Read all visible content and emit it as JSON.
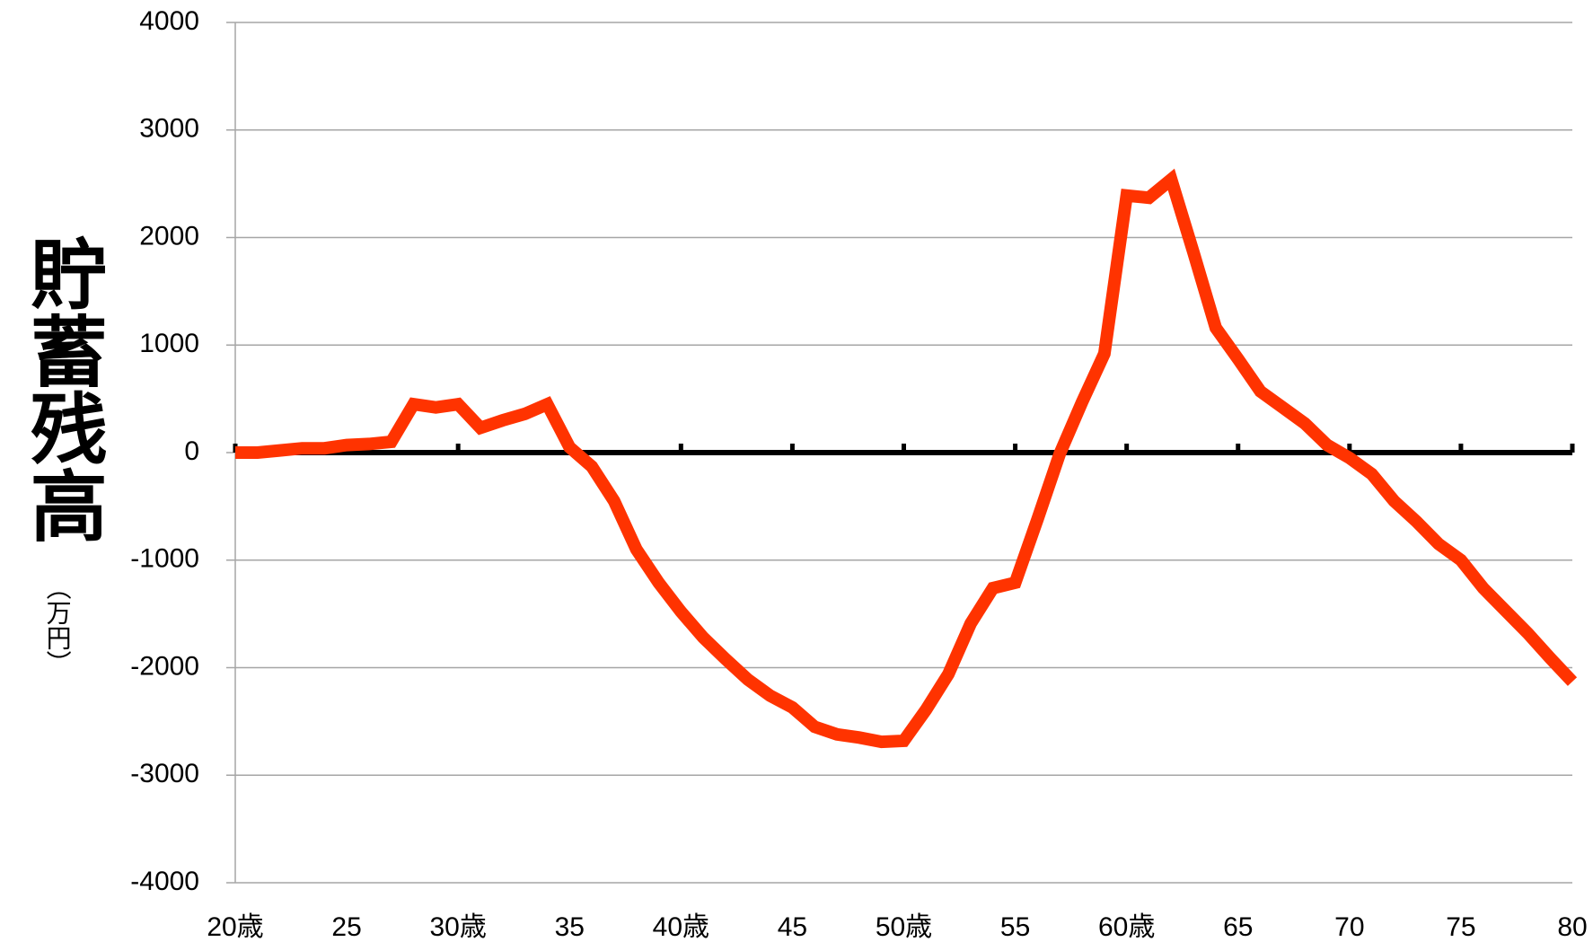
{
  "chart_data": {
    "type": "line",
    "y_label": "貯蓄残高",
    "y_unit": "（万円）",
    "x": [
      20,
      21,
      22,
      23,
      24,
      25,
      26,
      27,
      28,
      29,
      30,
      31,
      32,
      33,
      34,
      35,
      36,
      37,
      38,
      39,
      40,
      41,
      42,
      43,
      44,
      45,
      46,
      47,
      48,
      49,
      50,
      51,
      52,
      53,
      54,
      55,
      56,
      57,
      58,
      59,
      60,
      61,
      62,
      63,
      64,
      65,
      66,
      67,
      68,
      69,
      70,
      71,
      72,
      73,
      74,
      75,
      76,
      77,
      78,
      79,
      80
    ],
    "series": [
      {
        "color": "#ff3300",
        "values": [
          0,
          0,
          20,
          40,
          40,
          70,
          80,
          100,
          450,
          420,
          450,
          230,
          300,
          360,
          450,
          50,
          -130,
          -450,
          -900,
          -1210,
          -1480,
          -1720,
          -1920,
          -2110,
          -2260,
          -2370,
          -2550,
          -2620,
          -2650,
          -2690,
          -2680,
          -2390,
          -2060,
          -1590,
          -1260,
          -1210,
          -620,
          -10,
          470,
          920,
          2390,
          2370,
          2540,
          1860,
          1160,
          870,
          570,
          420,
          270,
          70,
          -50,
          -200,
          -450,
          -640,
          -850,
          -1000,
          -1260,
          -1470,
          -1680,
          -1910,
          -2130
        ]
      }
    ],
    "xlim": [
      20,
      80
    ],
    "xticks": [
      {
        "value": 20,
        "label": "20歳"
      },
      25,
      {
        "value": 30,
        "label": "30歳"
      },
      35,
      {
        "value": 40,
        "label": "40歳"
      },
      45,
      {
        "value": 50,
        "label": "50歳"
      },
      55,
      {
        "value": 60,
        "label": "60歳"
      },
      65,
      70,
      75,
      80
    ],
    "ylim": [
      -4000,
      4000
    ],
    "yticks": [
      4000,
      3000,
      2000,
      1000,
      0,
      -1000,
      -2000,
      -3000,
      -4000
    ],
    "grid": true,
    "negative_tick_color": "#ff0000"
  }
}
